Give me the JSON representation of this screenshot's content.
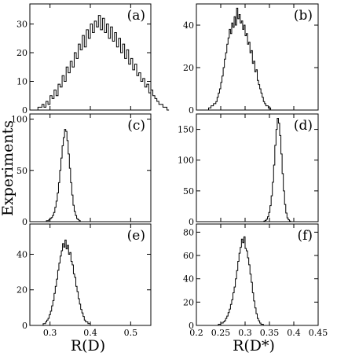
{
  "chart_data": {
    "type": "histogram-grid",
    "ylabel": "Experiments",
    "columns": [
      {
        "xlabel": "R(D)",
        "xlim": [
          0.25,
          0.55
        ],
        "xticks": [
          0.3,
          0.4,
          0.5
        ],
        "xtick_labels": [
          "0.3",
          "0.4",
          "0.5"
        ]
      },
      {
        "xlabel": "R(D*)",
        "xlim": [
          0.2,
          0.45
        ],
        "xticks": [
          0.2,
          0.25,
          0.3,
          0.35,
          0.4,
          0.45
        ],
        "xtick_labels": [
          "0.2",
          "0.25",
          "0.3",
          "0.35",
          "0.4",
          "0.45"
        ]
      }
    ],
    "panels": [
      {
        "label": "(a)",
        "row": 0,
        "col": 0,
        "ylim": [
          0,
          37
        ],
        "yticks": [
          0,
          10,
          20,
          30
        ],
        "ytick_labels": [
          "0",
          "10",
          "20",
          "30"
        ],
        "bin_start": 0.255,
        "bin_width": 0.005,
        "counts": [
          0,
          0,
          0,
          1,
          1,
          2,
          1,
          3,
          2,
          5,
          4,
          7,
          5,
          9,
          8,
          12,
          10,
          15,
          13,
          17,
          15,
          20,
          18,
          23,
          21,
          26,
          22,
          28,
          25,
          30,
          27,
          31,
          29,
          33,
          28,
          32,
          27,
          30,
          25,
          29,
          24,
          27,
          22,
          25,
          20,
          23,
          18,
          21,
          16,
          18,
          14,
          16,
          12,
          13,
          10,
          11,
          8,
          9,
          6,
          7,
          5,
          4,
          3,
          2,
          2,
          1,
          1,
          0
        ]
      },
      {
        "label": "(b)",
        "row": 0,
        "col": 1,
        "ylim": [
          0,
          50
        ],
        "yticks": [
          0,
          20,
          40
        ],
        "ytick_labels": [
          "0",
          "20",
          "40"
        ],
        "bin_start": 0.22,
        "bin_width": 0.0025,
        "counts": [
          0,
          0,
          1,
          1,
          2,
          2,
          3,
          3,
          4,
          6,
          8,
          10,
          13,
          16,
          20,
          24,
          27,
          31,
          34,
          38,
          36,
          41,
          39,
          44,
          40,
          48,
          43,
          45,
          41,
          42,
          38,
          40,
          35,
          36,
          31,
          32,
          27,
          28,
          22,
          23,
          18,
          19,
          14,
          12,
          10,
          8,
          6,
          4,
          3,
          2,
          2,
          1,
          1,
          0,
          0
        ]
      },
      {
        "label": "(c)",
        "row": 1,
        "col": 0,
        "ylim": [
          0,
          105
        ],
        "yticks": [
          0,
          50,
          100
        ],
        "ytick_labels": [
          "0",
          "50",
          "100"
        ],
        "bin_start": 0.285,
        "bin_width": 0.003,
        "counts": [
          0,
          0,
          1,
          1,
          2,
          3,
          4,
          6,
          9,
          14,
          20,
          28,
          38,
          50,
          62,
          74,
          82,
          90,
          88,
          79,
          66,
          52,
          38,
          26,
          16,
          10,
          6,
          3,
          2,
          1,
          0
        ]
      },
      {
        "label": "(d)",
        "row": 1,
        "col": 1,
        "ylim": [
          0,
          175
        ],
        "yticks": [
          0,
          50,
          100,
          150
        ],
        "ytick_labels": [
          "0",
          "50",
          "100",
          "150"
        ],
        "bin_start": 0.336,
        "bin_width": 0.0025,
        "counts": [
          0,
          1,
          2,
          4,
          8,
          15,
          26,
          42,
          64,
          92,
          124,
          150,
          168,
          160,
          140,
          110,
          78,
          50,
          28,
          14,
          6,
          3,
          1,
          0
        ]
      },
      {
        "label": "(e)",
        "row": 2,
        "col": 0,
        "ylim": [
          0,
          57
        ],
        "yticks": [
          0,
          20,
          40
        ],
        "ytick_labels": [
          "0",
          "20",
          "40"
        ],
        "bin_start": 0.28,
        "bin_width": 0.003,
        "counts": [
          0,
          1,
          1,
          2,
          3,
          4,
          6,
          8,
          11,
          14,
          18,
          22,
          26,
          31,
          35,
          39,
          42,
          46,
          44,
          48,
          43,
          45,
          40,
          41,
          36,
          34,
          29,
          27,
          22,
          19,
          15,
          12,
          9,
          7,
          5,
          3,
          2,
          2,
          1,
          1,
          0
        ]
      },
      {
        "label": "(f)",
        "row": 2,
        "col": 1,
        "ylim": [
          0,
          87
        ],
        "yticks": [
          0,
          20,
          40,
          60,
          80
        ],
        "ytick_labels": [
          "0",
          "20",
          "40",
          "60",
          "80"
        ],
        "bin_start": 0.24,
        "bin_width": 0.0025,
        "counts": [
          0,
          0,
          1,
          1,
          2,
          2,
          3,
          4,
          6,
          8,
          11,
          14,
          18,
          22,
          28,
          33,
          40,
          47,
          55,
          62,
          67,
          74,
          71,
          76,
          66,
          64,
          58,
          52,
          44,
          37,
          28,
          21,
          15,
          10,
          6,
          4,
          2,
          1,
          1,
          0
        ]
      }
    ]
  }
}
